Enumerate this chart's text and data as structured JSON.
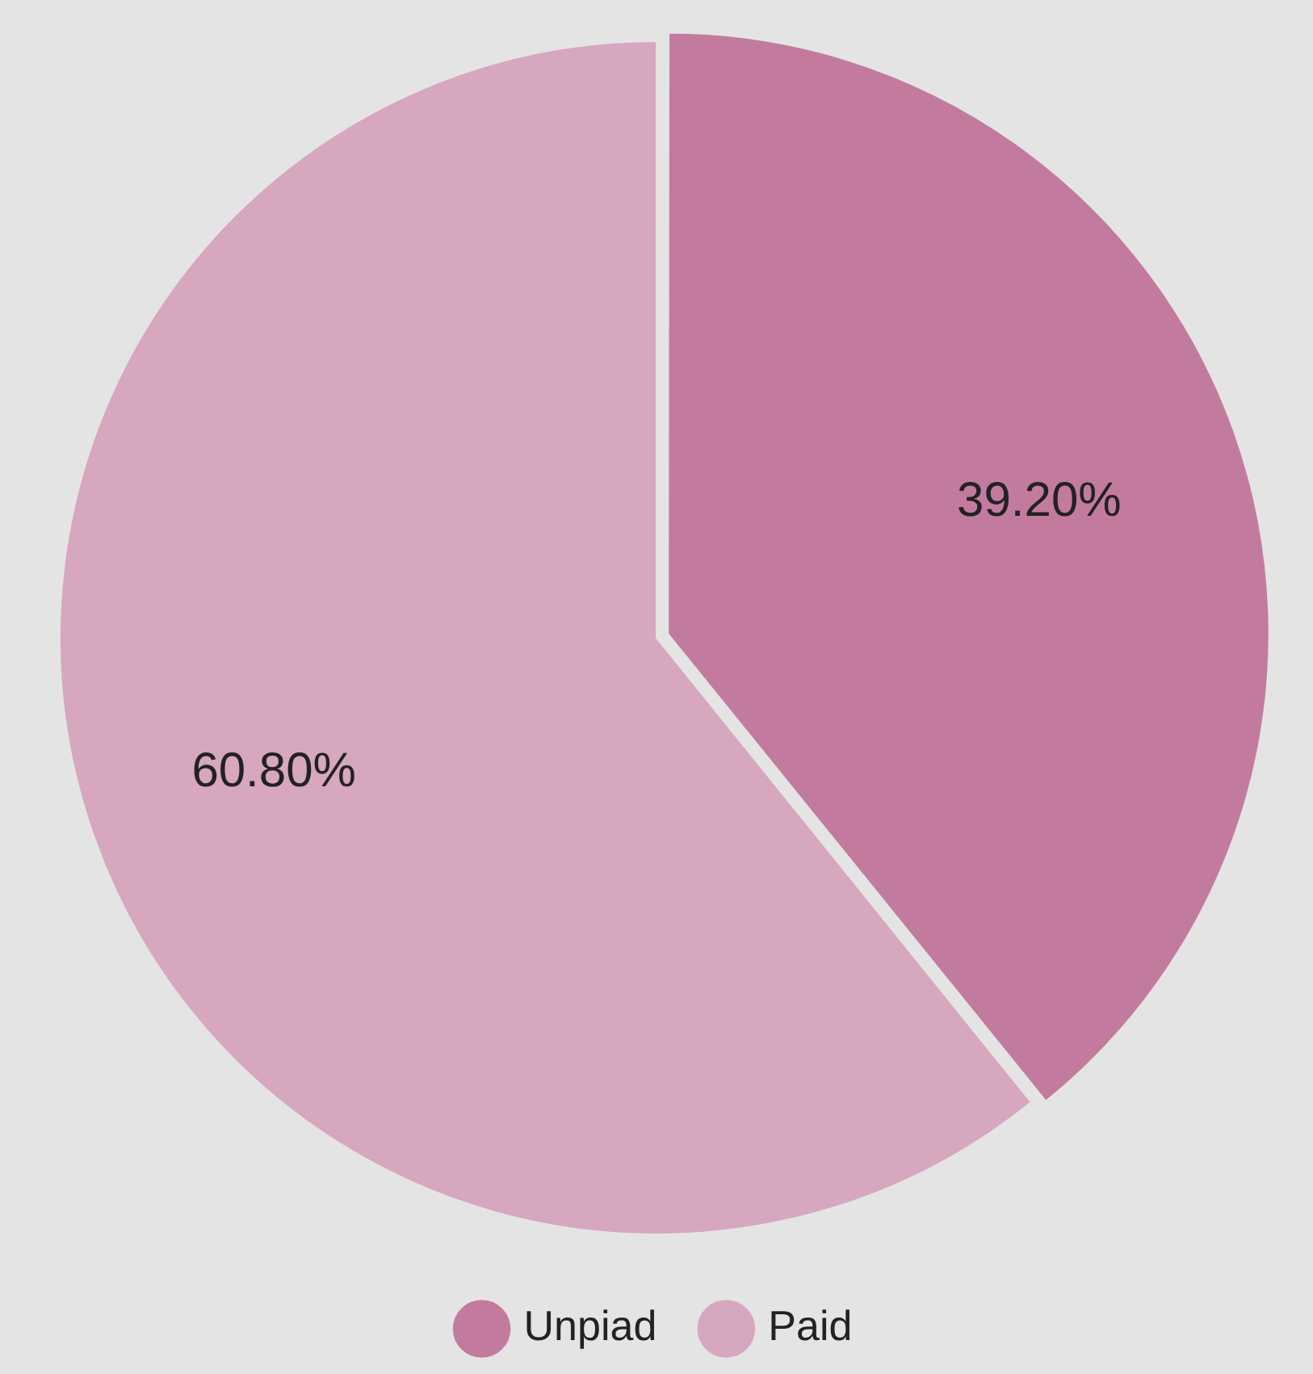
{
  "chart_data": {
    "type": "pie",
    "categories": [
      "Unpiad",
      "Paid"
    ],
    "values": [
      39.2,
      60.8
    ],
    "colors": [
      "#c27b9f",
      "#d7a6bf"
    ],
    "value_labels": [
      "39.20%",
      "60.80%"
    ],
    "legend": "bottom"
  }
}
